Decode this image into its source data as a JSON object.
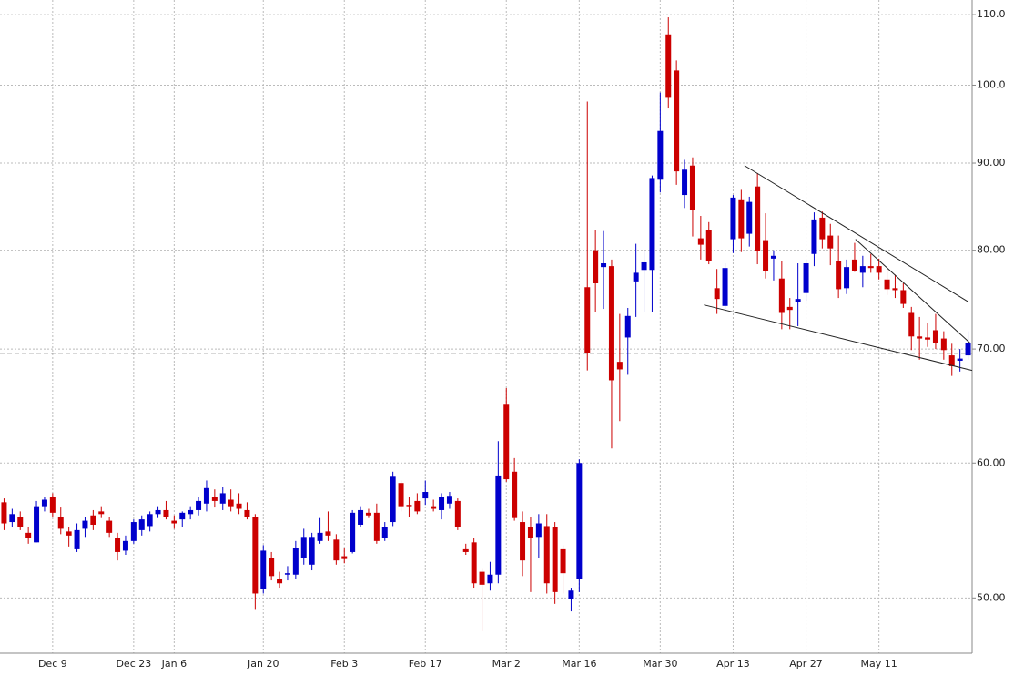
{
  "chart_data": {
    "type": "candlestick",
    "categories": [
      null,
      null,
      null,
      null,
      null,
      null,
      "Dec 9",
      null,
      null,
      null,
      null,
      null,
      null,
      null,
      null,
      null,
      "Dec 23",
      null,
      null,
      null,
      null,
      "Jan 6",
      null,
      null,
      null,
      null,
      null,
      null,
      null,
      null,
      null,
      null,
      "Jan 20",
      null,
      null,
      null,
      null,
      null,
      null,
      null,
      null,
      null,
      "Feb 3",
      null,
      null,
      null,
      null,
      null,
      null,
      null,
      null,
      null,
      "Feb 17",
      null,
      null,
      null,
      null,
      null,
      null,
      null,
      null,
      null,
      "Mar 2",
      null,
      null,
      null,
      null,
      null,
      null,
      null,
      null,
      "Mar 16",
      null,
      null,
      null,
      null,
      null,
      null,
      null,
      null,
      null,
      "Mar 30",
      null,
      null,
      null,
      null,
      null,
      null,
      null,
      null,
      "Apr 13",
      null,
      null,
      null,
      null,
      null,
      null,
      null,
      null,
      "Apr 27",
      null,
      null,
      null,
      null,
      null,
      null,
      null,
      null,
      "May 11",
      null,
      null,
      null,
      null,
      null,
      null,
      null,
      null,
      null,
      null,
      null
    ],
    "open": [
      56.9,
      55.4,
      55.8,
      54.6,
      53.9,
      56.6,
      57.3,
      55.8,
      54.7,
      53.4,
      54.9,
      55.9,
      56.2,
      55.5,
      54.2,
      53.3,
      54.0,
      54.8,
      55.1,
      56.0,
      56.3,
      55.5,
      55.6,
      56.0,
      56.3,
      56.8,
      57.3,
      56.8,
      57.1,
      56.8,
      56.3,
      55.8,
      50.6,
      52.8,
      51.3,
      51.6,
      51.6,
      52.8,
      52.3,
      54.0,
      54.7,
      54.1,
      52.9,
      53.2,
      55.2,
      56.1,
      56.1,
      54.2,
      55.4,
      58.4,
      56.7,
      57.0,
      57.2,
      56.6,
      56.3,
      56.8,
      57.0,
      53.4,
      53.9,
      51.8,
      51.0,
      51.6,
      65.0,
      59.3,
      55.4,
      55.0,
      54.3,
      55.1,
      55.0,
      53.4,
      49.9,
      51.3,
      76.1,
      80.0,
      78.2,
      78.3,
      68.8,
      71.1,
      76.7,
      77.9,
      77.9,
      88.0,
      107.1,
      102.0,
      86.2,
      89.7,
      81.3,
      82.2,
      76.0,
      74.2,
      81.2,
      85.7,
      81.8,
      87.2,
      81.1,
      79.1,
      77.0,
      74.1,
      74.6,
      75.5,
      79.6,
      83.6,
      81.6,
      78.8,
      76.0,
      79.0,
      77.6,
      78.3,
      78.3,
      76.9,
      76.0,
      75.8,
      73.5,
      71.2,
      71.1,
      71.8,
      71.0,
      69.4,
      68.9,
      69.4
    ],
    "high": [
      57.2,
      56.4,
      56.2,
      55.0,
      57.0,
      57.3,
      57.6,
      56.5,
      55.0,
      55.3,
      55.8,
      56.3,
      56.6,
      55.8,
      54.6,
      54.4,
      55.6,
      55.9,
      56.2,
      56.6,
      57.0,
      55.9,
      56.2,
      56.6,
      57.3,
      58.6,
      57.9,
      58.1,
      57.9,
      57.6,
      56.9,
      56.0,
      53.7,
      53.2,
      51.8,
      52.2,
      54.0,
      54.9,
      54.6,
      55.7,
      56.2,
      54.5,
      53.5,
      56.3,
      56.6,
      56.4,
      56.8,
      55.4,
      59.3,
      58.6,
      57.3,
      57.6,
      58.6,
      57.1,
      57.6,
      57.7,
      57.2,
      53.8,
      54.2,
      52.0,
      52.5,
      61.8,
      66.4,
      60.4,
      56.2,
      55.8,
      56.0,
      56.0,
      55.4,
      53.7,
      50.7,
      60.3,
      97.8,
      82.2,
      82.1,
      79.0,
      73.4,
      74.0,
      80.7,
      80.0,
      88.5,
      99.0,
      109.6,
      103.4,
      90.4,
      90.7,
      83.8,
      83.1,
      78.0,
      78.6,
      86.2,
      86.8,
      86.0,
      88.8,
      84.1,
      80.0,
      78.8,
      75.0,
      78.6,
      79.0,
      84.2,
      84.3,
      82.9,
      81.6,
      79.0,
      80.8,
      79.4,
      79.6,
      79.1,
      78.0,
      77.4,
      76.5,
      74.1,
      73.1,
      72.5,
      73.4,
      71.7,
      70.5,
      70.0,
      71.7
    ],
    "low": [
      54.8,
      55.0,
      54.8,
      53.8,
      53.9,
      56.2,
      55.8,
      54.5,
      53.6,
      53.2,
      54.3,
      54.8,
      55.7,
      54.3,
      52.6,
      53.0,
      53.8,
      54.4,
      54.7,
      55.7,
      55.6,
      54.9,
      55.0,
      55.6,
      55.9,
      56.2,
      56.5,
      56.3,
      56.2,
      56.0,
      55.6,
      49.2,
      50.3,
      51.2,
      50.7,
      51.2,
      51.3,
      52.3,
      51.9,
      53.8,
      54.0,
      52.3,
      52.4,
      53.1,
      55.0,
      55.7,
      53.8,
      54.0,
      55.1,
      56.2,
      55.8,
      56.0,
      56.7,
      56.2,
      55.6,
      56.4,
      54.8,
      53.0,
      50.7,
      47.8,
      50.5,
      51.0,
      58.5,
      55.5,
      51.5,
      50.4,
      52.8,
      50.3,
      49.6,
      50.3,
      49.1,
      50.4,
      68.0,
      73.6,
      73.9,
      61.2,
      63.5,
      67.6,
      73.1,
      73.6,
      73.6,
      86.5,
      96.9,
      87.4,
      84.7,
      81.5,
      79.0,
      78.5,
      73.4,
      73.6,
      79.7,
      79.8,
      80.4,
      78.5,
      77.0,
      76.8,
      71.9,
      71.9,
      72.2,
      74.7,
      78.3,
      80.2,
      78.4,
      75.0,
      75.4,
      77.7,
      76.1,
      77.6,
      76.9,
      75.3,
      75.0,
      74.0,
      69.9,
      69.0,
      70.2,
      70.0,
      69.0,
      67.5,
      67.9,
      69.0
    ],
    "close": [
      55.3,
      56.0,
      55.0,
      54.2,
      56.6,
      57.1,
      56.1,
      54.9,
      54.4,
      54.8,
      55.5,
      55.2,
      56.0,
      54.6,
      53.2,
      54.0,
      55.4,
      55.6,
      56.0,
      56.3,
      55.8,
      55.3,
      56.1,
      56.3,
      57.0,
      58.0,
      57.0,
      57.6,
      56.6,
      56.4,
      55.8,
      50.3,
      53.3,
      51.5,
      51.0,
      51.7,
      53.5,
      54.3,
      54.3,
      54.6,
      54.4,
      52.6,
      52.7,
      56.1,
      56.3,
      55.9,
      54.0,
      55.0,
      58.9,
      56.6,
      56.6,
      56.2,
      57.7,
      56.4,
      57.3,
      57.4,
      55.0,
      53.2,
      51.0,
      50.9,
      51.6,
      59.0,
      58.7,
      55.7,
      52.6,
      54.2,
      55.3,
      51.0,
      50.4,
      51.7,
      50.5,
      60.0,
      69.6,
      76.5,
      78.6,
      67.1,
      68.1,
      73.2,
      77.6,
      78.7,
      88.2,
      94.0,
      98.3,
      89.0,
      89.2,
      84.5,
      80.6,
      78.8,
      74.9,
      78.1,
      85.9,
      81.3,
      85.4,
      79.9,
      77.8,
      79.4,
      73.5,
      73.8,
      74.9,
      78.6,
      83.4,
      81.2,
      80.2,
      75.9,
      78.2,
      77.8,
      78.3,
      78.1,
      77.6,
      75.9,
      75.8,
      74.4,
      71.2,
      71.0,
      70.9,
      70.6,
      69.9,
      68.4,
      69.1,
      70.6
    ],
    "up_color": "#0000cc",
    "down_color": "#cc0000",
    "ylim": [
      46.4,
      112.2
    ],
    "log_scale": true,
    "yticks": [
      {
        "value": 50,
        "label": "50.00"
      },
      {
        "value": 60,
        "label": "60.00"
      },
      {
        "value": 70,
        "label": "70.00"
      },
      {
        "value": 80,
        "label": "80.00"
      },
      {
        "value": 90,
        "label": "90.00"
      },
      {
        "value": 100,
        "label": "100.0"
      },
      {
        "value": 110,
        "label": "110.0"
      }
    ],
    "grid": true,
    "reference_line": 69.6,
    "trendlines": [
      {
        "start": [
          91.4,
          89.7
        ],
        "end": [
          119.05,
          74.6
        ]
      },
      {
        "start": [
          105.1,
          81.2
        ],
        "end": [
          119.2,
          70.6
        ]
      },
      {
        "start": [
          86.4,
          74.3
        ],
        "end": [
          119.5,
          68.0
        ]
      }
    ]
  }
}
